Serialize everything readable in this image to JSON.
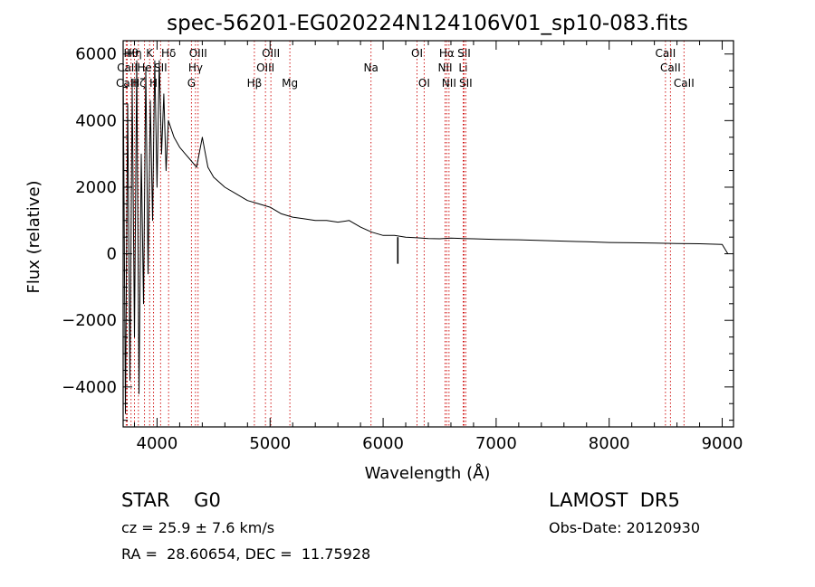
{
  "chart_data": {
    "type": "line",
    "title": "spec-56201-EG020224N124106V01_sp10-083.fits",
    "xlabel": "Wavelength (Å)",
    "ylabel": "Flux (relative)",
    "xlim": [
      3700,
      9100
    ],
    "ylim": [
      -5200,
      6400
    ],
    "x_ticks": [
      4000,
      5000,
      6000,
      7000,
      8000,
      9000
    ],
    "y_ticks": [
      -4000,
      -2000,
      0,
      2000,
      4000,
      6000
    ],
    "grid": false,
    "line_color": "#000000",
    "marker_color": "#cc0000",
    "series": [
      {
        "x": [
          3700,
          3720,
          3740,
          3760,
          3780,
          3800,
          3820,
          3840,
          3860,
          3880,
          3900,
          3920,
          3940,
          3960,
          3980,
          4000,
          4020,
          4040,
          4060,
          4080,
          4100,
          4150,
          4200,
          4250,
          4300,
          4350,
          4400,
          4450,
          4500,
          4600,
          4700,
          4800,
          4900,
          5000,
          5100,
          5200,
          5300,
          5400,
          5500,
          5600,
          5700,
          5800,
          5900,
          6000,
          6100,
          6200,
          6300,
          6400,
          6500,
          6600,
          6700,
          6800,
          6900,
          7000,
          7200,
          7400,
          7600,
          7800,
          8000,
          8200,
          8400,
          8600,
          8800,
          9000,
          9050
        ],
        "y": [
          5800,
          -4800,
          4500,
          -3800,
          5000,
          -2500,
          5800,
          -4200,
          3000,
          -1500,
          5600,
          -600,
          4600,
          1000,
          5800,
          2000,
          5800,
          3000,
          4800,
          2500,
          4000,
          3500,
          3200,
          3000,
          2800,
          2600,
          3500,
          2600,
          2300,
          2000,
          1800,
          1600,
          1500,
          1400,
          1200,
          1100,
          1050,
          1000,
          1000,
          950,
          1000,
          800,
          650,
          550,
          550,
          500,
          480,
          460,
          450,
          470,
          460,
          450,
          440,
          430,
          420,
          400,
          380,
          360,
          340,
          330,
          320,
          310,
          300,
          280,
          0
        ],
        "features": [
          {
            "x": 6130,
            "y": -300
          }
        ]
      }
    ],
    "spectral_lines": [
      {
        "name": "CaII",
        "wavelength": 3727,
        "row": 3
      },
      {
        "name": "CaII",
        "wavelength": 3736,
        "row": 2
      },
      {
        "name": "Hθ",
        "wavelength": 3770,
        "row": 1
      },
      {
        "name": "Hη",
        "wavelength": 3800,
        "row": 1
      },
      {
        "name": "Hζ",
        "wavelength": 3835,
        "row": 3
      },
      {
        "name": "He",
        "wavelength": 3889,
        "row": 2
      },
      {
        "name": "K",
        "wavelength": 3934,
        "row": 1
      },
      {
        "name": "H",
        "wavelength": 3969,
        "row": 3
      },
      {
        "name": "SII",
        "wavelength": 4031,
        "row": 2
      },
      {
        "name": "Hδ",
        "wavelength": 4102,
        "row": 1
      },
      {
        "name": "G",
        "wavelength": 4304,
        "row": 3
      },
      {
        "name": "Hγ",
        "wavelength": 4340,
        "row": 2
      },
      {
        "name": "OIII",
        "wavelength": 4363,
        "row": 1
      },
      {
        "name": "Hβ",
        "wavelength": 4861,
        "row": 3
      },
      {
        "name": "OIII",
        "wavelength": 4959,
        "row": 2
      },
      {
        "name": "OIII",
        "wavelength": 5007,
        "row": 1
      },
      {
        "name": "Mg",
        "wavelength": 5175,
        "row": 3
      },
      {
        "name": "Na",
        "wavelength": 5893,
        "row": 2
      },
      {
        "name": "OI",
        "wavelength": 6300,
        "row": 1
      },
      {
        "name": "OI",
        "wavelength": 6363,
        "row": 3
      },
      {
        "name": "NII",
        "wavelength": 6548,
        "row": 2
      },
      {
        "name": "Hα",
        "wavelength": 6563,
        "row": 1
      },
      {
        "name": "NII",
        "wavelength": 6583,
        "row": 3
      },
      {
        "name": "Li",
        "wavelength": 6708,
        "row": 2
      },
      {
        "name": "SII",
        "wavelength": 6716,
        "row": 1
      },
      {
        "name": "SII",
        "wavelength": 6731,
        "row": 3
      },
      {
        "name": "CaII",
        "wavelength": 8498,
        "row": 1
      },
      {
        "name": "CaII",
        "wavelength": 8542,
        "row": 2
      },
      {
        "name": "CaII",
        "wavelength": 8662,
        "row": 3
      }
    ]
  },
  "info": {
    "class_label": "STAR    G0",
    "survey": "LAMOST  DR5",
    "redshift_line": "cz = 25.9 ± 7.6 km/s",
    "obs_date": "Obs-Date: 20120930",
    "coords": "RA =  28.60654, DEC =  11.75928"
  }
}
